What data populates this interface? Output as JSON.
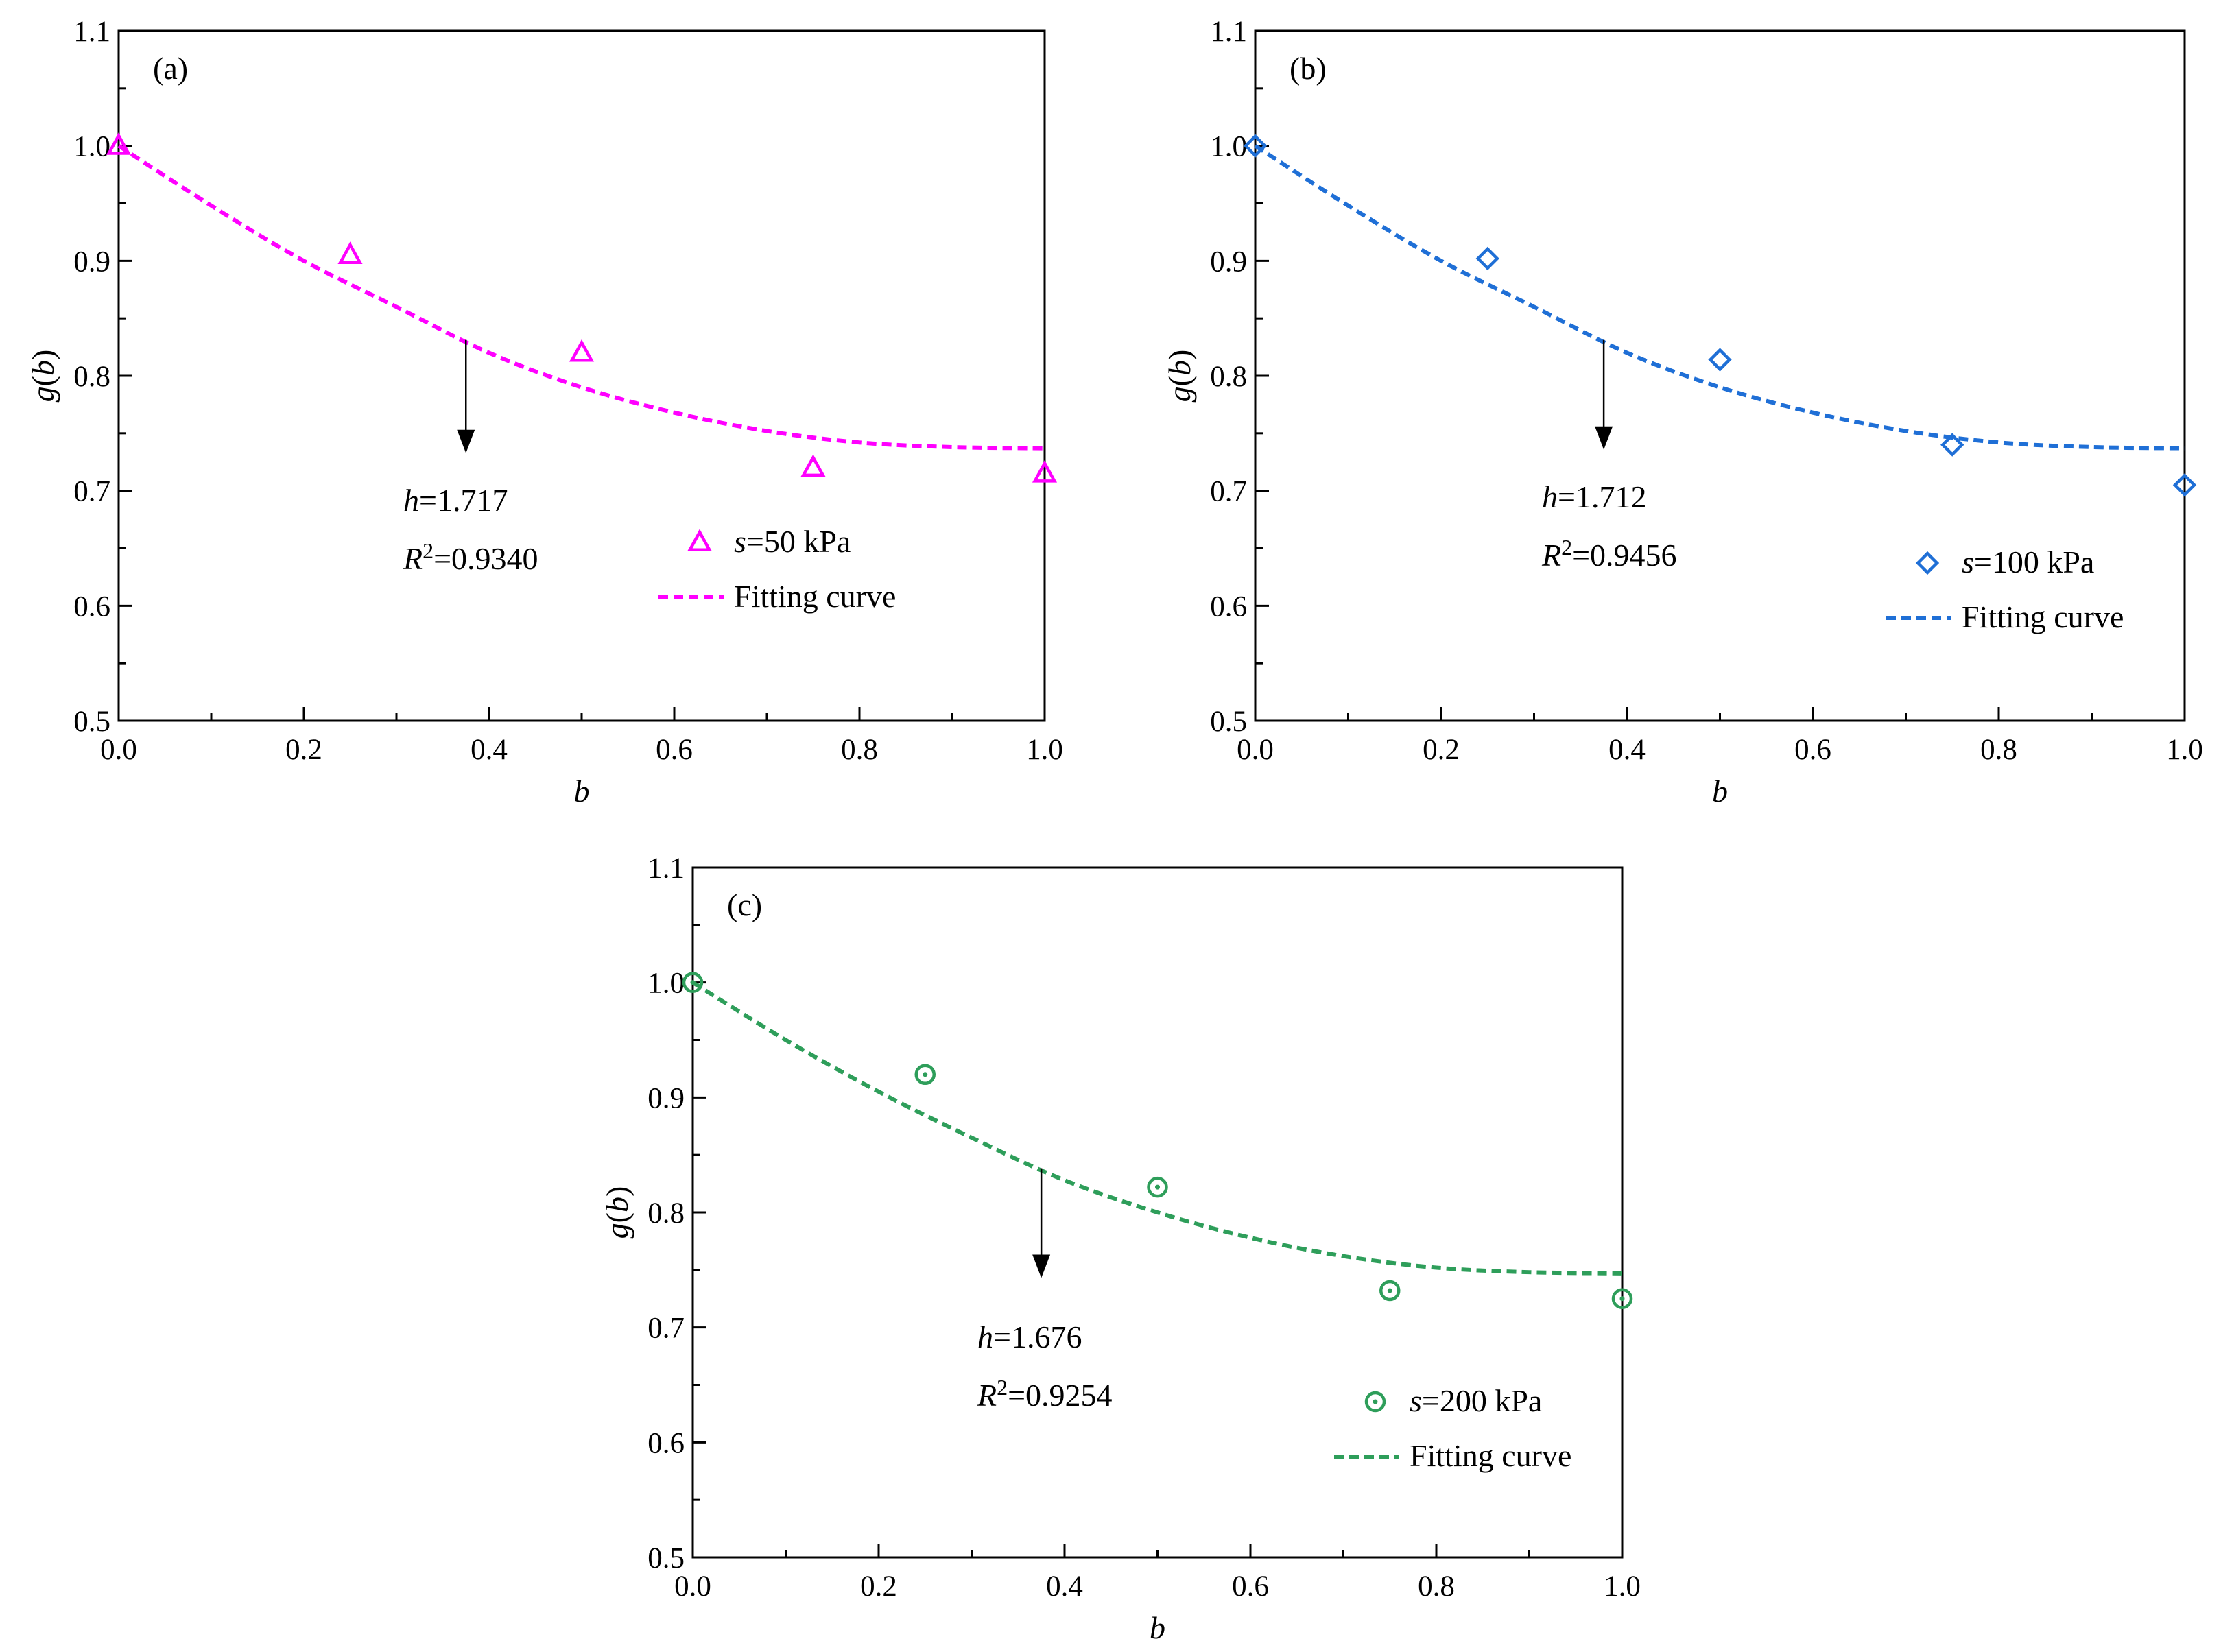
{
  "figure": {
    "panels": [
      {
        "panel_label": "(a)",
        "xlabel": "b",
        "ylabel": {
          "func": "g",
          "open": "(",
          "arg": "b",
          "close": ")"
        },
        "xticks": [
          "0.0",
          "0.2",
          "0.4",
          "0.6",
          "0.8",
          "1.0"
        ],
        "yticks": [
          "0.5",
          "0.6",
          "0.7",
          "0.8",
          "0.9",
          "1.0",
          "1.1"
        ],
        "annotation": {
          "h_label": "h",
          "h_value": "=1.717",
          "r_label": "R",
          "r_sup": "2",
          "r_value": "=0.9340"
        },
        "legend": {
          "series_var": "s",
          "series_value": "=50 kPa",
          "fit_label": "Fitting curve"
        },
        "color": "#ff00ff",
        "marker": "triangle"
      },
      {
        "panel_label": "(b)",
        "xlabel": "b",
        "ylabel": {
          "func": "g",
          "open": "(",
          "arg": "b",
          "close": ")"
        },
        "xticks": [
          "0.0",
          "0.2",
          "0.4",
          "0.6",
          "0.8",
          "1.0"
        ],
        "yticks": [
          "0.5",
          "0.6",
          "0.7",
          "0.8",
          "0.9",
          "1.0",
          "1.1"
        ],
        "annotation": {
          "h_label": "h",
          "h_value": "=1.712",
          "r_label": "R",
          "r_sup": "2",
          "r_value": "=0.9456"
        },
        "legend": {
          "series_var": "s",
          "series_value": "=100 kPa",
          "fit_label": "Fitting curve"
        },
        "color": "#1f6fd6",
        "marker": "diamond"
      },
      {
        "panel_label": "(c)",
        "xlabel": "b",
        "ylabel": {
          "func": "g",
          "open": "(",
          "arg": "b",
          "close": ")"
        },
        "xticks": [
          "0.0",
          "0.2",
          "0.4",
          "0.6",
          "0.8",
          "1.0"
        ],
        "yticks": [
          "0.5",
          "0.6",
          "0.7",
          "0.8",
          "0.9",
          "1.0",
          "1.1"
        ],
        "annotation": {
          "h_label": "h",
          "h_value": "=1.676",
          "r_label": "R",
          "r_sup": "2",
          "r_value": "=0.9254"
        },
        "legend": {
          "series_var": "s",
          "series_value": "=200 kPa",
          "fit_label": "Fitting curve"
        },
        "color": "#2e9e5a",
        "marker": "circle-dot"
      }
    ]
  },
  "chart_data": [
    {
      "type": "scatter",
      "title": "(a)",
      "xlabel": "b",
      "ylabel": "g(b)",
      "xlim": [
        0.0,
        1.0
      ],
      "ylim": [
        0.5,
        1.1
      ],
      "series": [
        {
          "name": "s=50 kPa",
          "x": [
            0.0,
            0.25,
            0.5,
            0.75,
            1.0
          ],
          "y": [
            1.0,
            0.905,
            0.82,
            0.72,
            0.715
          ]
        },
        {
          "name": "Fitting curve",
          "style": "dashed",
          "h": 1.717,
          "R2": 0.934,
          "x": [
            0.0,
            0.1,
            0.2,
            0.3,
            0.4,
            0.5,
            0.6,
            0.7,
            0.8,
            0.9,
            1.0
          ],
          "y": [
            1.0,
            0.948,
            0.9,
            0.86,
            0.82,
            0.79,
            0.768,
            0.752,
            0.742,
            0.738,
            0.737
          ]
        }
      ],
      "annotations": [
        "h=1.717",
        "R2=0.9340"
      ],
      "legend_position": "bottom-right"
    },
    {
      "type": "scatter",
      "title": "(b)",
      "xlabel": "b",
      "ylabel": "g(b)",
      "xlim": [
        0.0,
        1.0
      ],
      "ylim": [
        0.5,
        1.1
      ],
      "series": [
        {
          "name": "s=100 kPa",
          "x": [
            0.0,
            0.25,
            0.5,
            0.75,
            1.0
          ],
          "y": [
            1.0,
            0.902,
            0.814,
            0.74,
            0.705
          ]
        },
        {
          "name": "Fitting curve",
          "style": "dashed",
          "h": 1.712,
          "R2": 0.9456,
          "x": [
            0.0,
            0.1,
            0.2,
            0.3,
            0.4,
            0.5,
            0.6,
            0.7,
            0.8,
            0.9,
            1.0
          ],
          "y": [
            1.0,
            0.948,
            0.9,
            0.86,
            0.82,
            0.79,
            0.768,
            0.752,
            0.742,
            0.738,
            0.737
          ]
        }
      ],
      "annotations": [
        "h=1.712",
        "R2=0.9456"
      ],
      "legend_position": "bottom-right"
    },
    {
      "type": "scatter",
      "title": "(c)",
      "xlabel": "b",
      "ylabel": "g(b)",
      "xlim": [
        0.0,
        1.0
      ],
      "ylim": [
        0.5,
        1.1
      ],
      "series": [
        {
          "name": "s=200 kPa",
          "x": [
            0.0,
            0.25,
            0.5,
            0.75,
            1.0
          ],
          "y": [
            1.0,
            0.92,
            0.822,
            0.732,
            0.725
          ]
        },
        {
          "name": "Fitting curve",
          "style": "dashed",
          "h": 1.676,
          "R2": 0.9254,
          "x": [
            0.0,
            0.1,
            0.2,
            0.3,
            0.4,
            0.5,
            0.6,
            0.7,
            0.8,
            0.9,
            1.0
          ],
          "y": [
            1.0,
            0.95,
            0.905,
            0.865,
            0.828,
            0.8,
            0.778,
            0.762,
            0.752,
            0.748,
            0.747
          ]
        }
      ],
      "annotations": [
        "h=1.676",
        "R2=0.9254"
      ],
      "legend_position": "bottom-right"
    }
  ]
}
